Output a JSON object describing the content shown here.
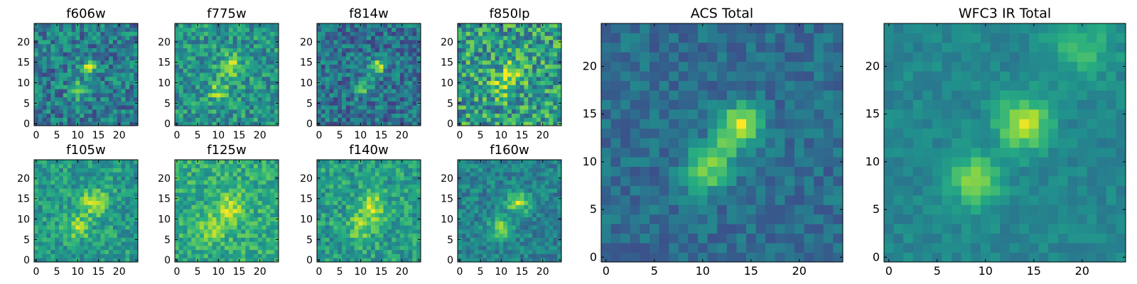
{
  "figure": {
    "colormap": "viridis",
    "colors": {
      "viridis_low": "#440154",
      "viridis_mid": "#21918c",
      "viridis_high": "#fde725",
      "axis": "#000000",
      "background": "#ffffff"
    }
  },
  "chart_data": [
    {
      "type": "heatmap",
      "title": "f606w",
      "grid": [
        25,
        25
      ],
      "xlim": [
        0,
        24
      ],
      "ylim": [
        0,
        24
      ],
      "x_ticks": [
        0,
        5,
        10,
        15,
        20
      ],
      "y_ticks": [
        0,
        5,
        10,
        15,
        20
      ],
      "sources": [
        {
          "x": 13,
          "y": 14,
          "amp": 0.42,
          "sigma": 1.4
        },
        {
          "x": 10,
          "y": 8,
          "amp": 0.38,
          "sigma": 1.5
        }
      ],
      "base": 0.42,
      "noise": 0.22,
      "seed": 11
    },
    {
      "type": "heatmap",
      "title": "f775w",
      "grid": [
        25,
        25
      ],
      "xlim": [
        0,
        24
      ],
      "ylim": [
        0,
        24
      ],
      "x_ticks": [
        0,
        5,
        10,
        15,
        20
      ],
      "y_ticks": [
        0,
        5,
        10,
        15,
        20
      ],
      "sources": [
        {
          "x": 13,
          "y": 14,
          "amp": 0.35,
          "sigma": 2.0
        },
        {
          "x": 10,
          "y": 8,
          "amp": 0.28,
          "sigma": 1.8
        }
      ],
      "base": 0.52,
      "noise": 0.2,
      "seed": 23
    },
    {
      "type": "heatmap",
      "title": "f814w",
      "grid": [
        25,
        25
      ],
      "xlim": [
        0,
        24
      ],
      "ylim": [
        0,
        24
      ],
      "x_ticks": [
        0,
        5,
        10,
        15,
        20
      ],
      "y_ticks": [
        0,
        5,
        10,
        15,
        20
      ],
      "sources": [
        {
          "x": 14,
          "y": 14,
          "amp": 0.5,
          "sigma": 1.3
        },
        {
          "x": 11,
          "y": 9,
          "amp": 0.3,
          "sigma": 1.6
        }
      ],
      "base": 0.38,
      "noise": 0.2,
      "seed": 37
    },
    {
      "type": "heatmap",
      "title": "f850lp",
      "grid": [
        25,
        25
      ],
      "xlim": [
        0,
        24
      ],
      "ylim": [
        0,
        24
      ],
      "x_ticks": [
        0,
        5,
        10,
        15,
        20
      ],
      "y_ticks": [
        0,
        5,
        10,
        15,
        20
      ],
      "sources": [
        {
          "x": 13,
          "y": 13,
          "amp": 0.3,
          "sigma": 2.2
        },
        {
          "x": 10,
          "y": 9,
          "amp": 0.22,
          "sigma": 2.0
        }
      ],
      "base": 0.55,
      "noise": 0.28,
      "seed": 41
    },
    {
      "type": "heatmap",
      "title": "f105w",
      "grid": [
        25,
        25
      ],
      "xlim": [
        0,
        24
      ],
      "ylim": [
        0,
        24
      ],
      "x_ticks": [
        0,
        5,
        10,
        15,
        20
      ],
      "y_ticks": [
        0,
        5,
        10,
        15,
        20
      ],
      "sources": [
        {
          "x": 14,
          "y": 14,
          "amp": 0.35,
          "sigma": 2.2
        },
        {
          "x": 10,
          "y": 8,
          "amp": 0.3,
          "sigma": 2.0
        }
      ],
      "base": 0.55,
      "noise": 0.16,
      "seed": 53
    },
    {
      "type": "heatmap",
      "title": "f125w",
      "grid": [
        25,
        25
      ],
      "xlim": [
        0,
        24
      ],
      "ylim": [
        0,
        24
      ],
      "x_ticks": [
        0,
        5,
        10,
        15,
        20
      ],
      "y_ticks": [
        0,
        5,
        10,
        15,
        20
      ],
      "sources": [
        {
          "x": 13,
          "y": 13,
          "amp": 0.28,
          "sigma": 2.4
        },
        {
          "x": 9,
          "y": 8,
          "amp": 0.24,
          "sigma": 2.2
        }
      ],
      "base": 0.62,
      "noise": 0.16,
      "seed": 67
    },
    {
      "type": "heatmap",
      "title": "f140w",
      "grid": [
        25,
        25
      ],
      "xlim": [
        0,
        24
      ],
      "ylim": [
        0,
        24
      ],
      "x_ticks": [
        0,
        5,
        10,
        15,
        20
      ],
      "y_ticks": [
        0,
        5,
        10,
        15,
        20
      ],
      "sources": [
        {
          "x": 13,
          "y": 13,
          "amp": 0.32,
          "sigma": 2.4
        },
        {
          "x": 10,
          "y": 8,
          "amp": 0.26,
          "sigma": 2.2
        }
      ],
      "base": 0.56,
      "noise": 0.17,
      "seed": 79
    },
    {
      "type": "heatmap",
      "title": "f160w",
      "grid": [
        25,
        25
      ],
      "xlim": [
        0,
        24
      ],
      "ylim": [
        0,
        24
      ],
      "x_ticks": [
        0,
        5,
        10,
        15,
        20
      ],
      "y_ticks": [
        0,
        5,
        10,
        15,
        20
      ],
      "sources": [
        {
          "x": 14,
          "y": 14,
          "amp": 0.45,
          "sigma": 1.8
        },
        {
          "x": 10,
          "y": 8,
          "amp": 0.4,
          "sigma": 1.8
        }
      ],
      "base": 0.45,
      "noise": 0.14,
      "seed": 83
    },
    {
      "type": "heatmap",
      "title": "ACS Total",
      "grid": [
        25,
        25
      ],
      "xlim": [
        0,
        24
      ],
      "ylim": [
        0,
        24
      ],
      "x_ticks": [
        0,
        5,
        10,
        15,
        20
      ],
      "y_ticks": [
        0,
        5,
        10,
        15,
        20
      ],
      "sources": [
        {
          "x": 14,
          "y": 14,
          "amp": 0.62,
          "sigma": 1.4
        },
        {
          "x": 10,
          "y": 9,
          "amp": 0.42,
          "sigma": 1.5
        },
        {
          "x": 12,
          "y": 11,
          "amp": 0.3,
          "sigma": 1.4
        }
      ],
      "base": 0.36,
      "noise": 0.11,
      "seed": 97
    },
    {
      "type": "heatmap",
      "title": "WFC3 IR Total",
      "grid": [
        25,
        25
      ],
      "xlim": [
        0,
        24
      ],
      "ylim": [
        0,
        24
      ],
      "x_ticks": [
        0,
        5,
        10,
        15,
        20
      ],
      "y_ticks": [
        0,
        5,
        10,
        15,
        20
      ],
      "sources": [
        {
          "x": 14,
          "y": 14,
          "amp": 0.48,
          "sigma": 1.9
        },
        {
          "x": 9,
          "y": 8,
          "amp": 0.38,
          "sigma": 1.8
        },
        {
          "x": 20,
          "y": 22,
          "amp": 0.2,
          "sigma": 2.5
        }
      ],
      "base": 0.46,
      "noise": 0.07,
      "seed": 101
    }
  ]
}
